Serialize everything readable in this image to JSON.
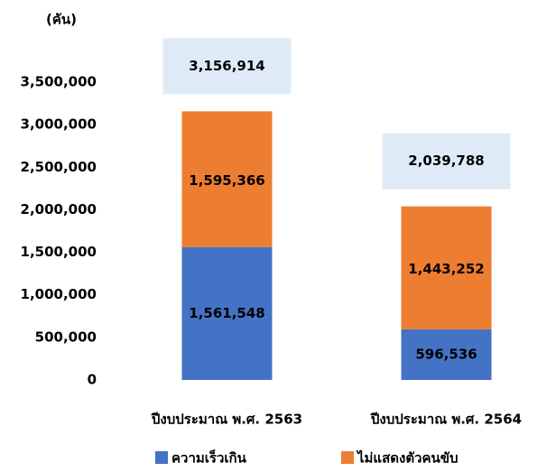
{
  "chart_data": {
    "type": "stacked_bar",
    "ylabel": "(คัน)",
    "categories": [
      "ปีงบประมาณ พ.ศ. 2563",
      "ปีงบประมาณ พ.ศ. 2564"
    ],
    "series": [
      {
        "name": "ความเร็วเกิน",
        "color": "#4472c4",
        "values": [
          1561548,
          596536
        ],
        "value_labels": [
          "1,561,548",
          "596,536"
        ]
      },
      {
        "name": "ไม่แสดงตัวคนขับ",
        "color": "#ed7d31",
        "values": [
          1595366,
          1443252
        ],
        "value_labels": [
          "1,595,366",
          "1,443,252"
        ]
      }
    ],
    "totals": {
      "values": [
        3156914,
        2039788
      ],
      "value_labels": [
        "3,156,914",
        "2,039,788"
      ],
      "color": "#deebf7"
    },
    "ylim": [
      0,
      3500000
    ],
    "yticks": [
      0,
      {
        "value": 500000,
        "label": "500,000"
      },
      {
        "value": 1000000,
        "label": "1,000,000"
      },
      {
        "value": 1500000,
        "label": "1,500,000"
      },
      {
        "value": 2000000,
        "label": "2,000,000"
      },
      {
        "value": 2500000,
        "label": "2,500,000"
      },
      {
        "value": 3000000,
        "label": "3,000,000"
      },
      {
        "value": 3500000,
        "label": "3,500,000"
      }
    ],
    "grid": false,
    "legend": "bottom"
  }
}
